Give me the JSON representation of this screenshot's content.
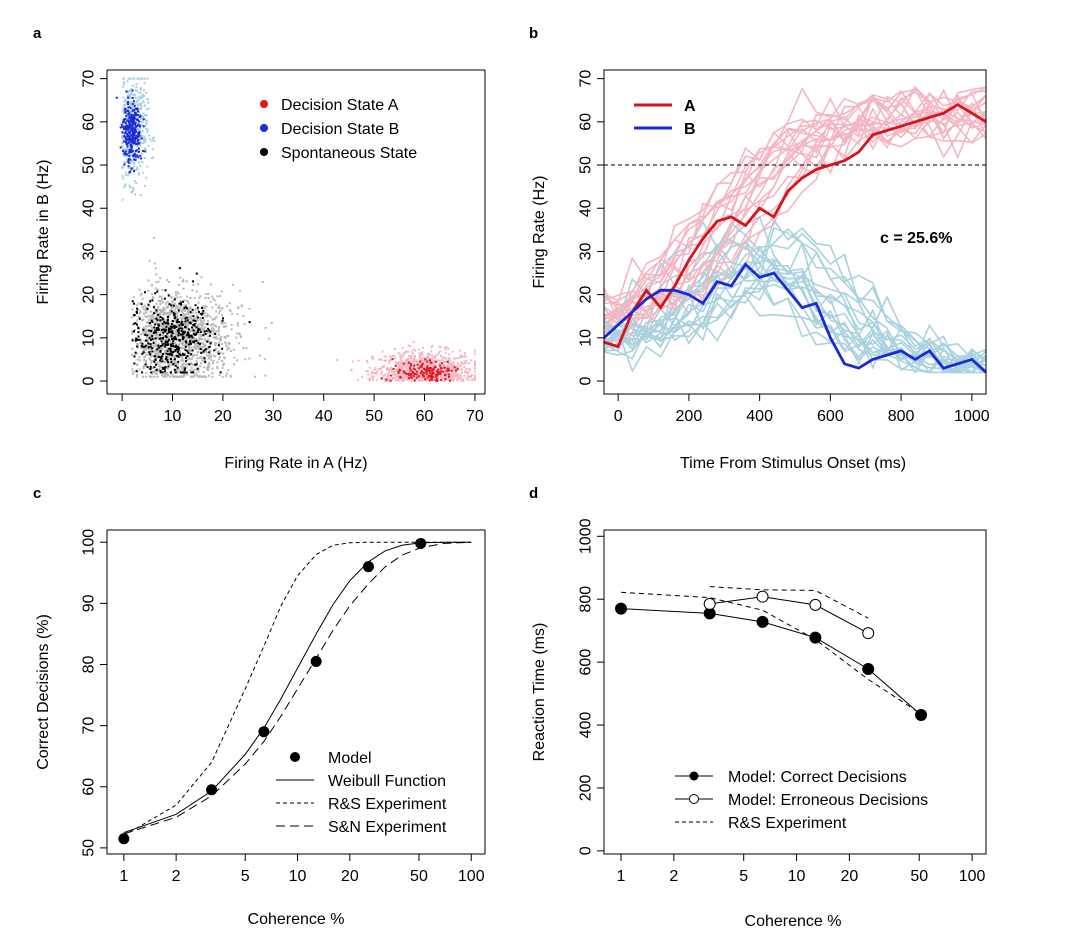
{
  "chart_data": [
    {
      "panel": "a",
      "type": "scatter",
      "xlabel": "Firing Rate in A (Hz)",
      "ylabel": "Firing Rate in B (Hz)",
      "xlim": [
        -3,
        72
      ],
      "ylim": [
        -3,
        72
      ],
      "xticks": [
        0,
        10,
        20,
        30,
        40,
        50,
        60,
        70
      ],
      "yticks": [
        0,
        10,
        20,
        30,
        40,
        50,
        60,
        70
      ],
      "legend_position": "top-right",
      "series": [
        {
          "name": "Decision State A",
          "color": "#e8141c",
          "cloud_color": "#f4b6c2",
          "center": [
            60,
            2
          ],
          "spread": [
            5,
            2.5
          ]
        },
        {
          "name": "Decision State B",
          "color": "#1a2bd6",
          "cloud_color": "#a9cfe0",
          "center": [
            2,
            58
          ],
          "spread": [
            1.5,
            6
          ]
        },
        {
          "name": "Spontaneous State",
          "color": "#000000",
          "cloud_color": "#b8b8b8",
          "center": [
            10,
            10
          ],
          "spread": [
            6,
            6
          ]
        }
      ]
    },
    {
      "panel": "b",
      "type": "line",
      "xlabel": "Time From Stimulus Onset (ms)",
      "ylabel": "Firing Rate (Hz)",
      "xlim": [
        -40,
        1040
      ],
      "ylim": [
        -3,
        72
      ],
      "xticks": [
        0,
        200,
        400,
        600,
        800,
        1000
      ],
      "yticks": [
        0,
        10,
        20,
        30,
        40,
        50,
        60,
        70
      ],
      "threshold": 50,
      "annotation": "c = 25.6%",
      "legend_position": "top-left",
      "series": [
        {
          "name": "A",
          "color": "#d7141c",
          "trials_color": "#f4b6c2",
          "x": [
            -40,
            0,
            40,
            80,
            120,
            160,
            200,
            240,
            280,
            320,
            360,
            400,
            440,
            480,
            520,
            560,
            600,
            640,
            680,
            720,
            760,
            800,
            840,
            880,
            920,
            960,
            1000,
            1040
          ],
          "y": [
            9,
            8,
            16,
            21,
            17,
            22,
            28,
            33,
            37,
            38,
            36,
            40,
            38,
            44,
            47,
            49,
            50,
            51,
            53,
            57,
            58,
            59,
            60,
            61,
            62,
            64,
            62,
            60
          ]
        },
        {
          "name": "B",
          "color": "#1a2bd6",
          "trials_color": "#a9d2de",
          "x": [
            -40,
            0,
            40,
            80,
            120,
            160,
            200,
            240,
            280,
            320,
            360,
            400,
            440,
            480,
            520,
            560,
            600,
            640,
            680,
            720,
            760,
            800,
            840,
            880,
            920,
            960,
            1000,
            1040
          ],
          "y": [
            10,
            13,
            16,
            19,
            21,
            21,
            20,
            18,
            23,
            22,
            27,
            24,
            25,
            21,
            17,
            18,
            10,
            4,
            3,
            5,
            6,
            7,
            5,
            7,
            3,
            4,
            5,
            2
          ]
        }
      ]
    },
    {
      "panel": "c",
      "type": "line",
      "xlabel": "Coherence %",
      "ylabel": "Correct Decisions (%)",
      "xscale": "log",
      "xlim": [
        0.8,
        120
      ],
      "ylim": [
        49,
        102
      ],
      "xticks": [
        1,
        2,
        5,
        10,
        20,
        50,
        100
      ],
      "yticks": [
        50,
        60,
        70,
        80,
        90,
        100
      ],
      "legend_position": "bottom-right",
      "series": [
        {
          "name": "Model",
          "style": "points",
          "x": [
            1,
            3.2,
            6.4,
            12.8,
            25.6,
            51.2
          ],
          "y": [
            51.5,
            59.5,
            69,
            80.5,
            96,
            99.8
          ]
        },
        {
          "name": "Weibull Function",
          "style": "solid",
          "x": [
            1,
            2,
            3.2,
            5,
            6.4,
            8,
            10,
            12.8,
            16,
            20,
            25.6,
            32,
            40,
            51.2,
            70,
            100
          ],
          "y": [
            52.5,
            55.5,
            59.3,
            65.3,
            69.6,
            74.3,
            79.4,
            85,
            89.8,
            93.7,
            96.8,
            98.6,
            99.5,
            99.9,
            100,
            100
          ]
        },
        {
          "name": "R&S Experiment",
          "style": "short-dash",
          "x": [
            1,
            2,
            3.2,
            5,
            6.4,
            8,
            10,
            12.8,
            16,
            20,
            25.6,
            32,
            51.2,
            100
          ],
          "y": [
            52,
            57,
            64,
            76,
            83,
            89.5,
            94.5,
            98,
            99.5,
            99.9,
            100,
            100,
            100,
            100
          ]
        },
        {
          "name": "S&N Experiment",
          "style": "long-dash",
          "x": [
            1,
            2,
            3.2,
            5,
            6.4,
            8,
            10,
            12.8,
            16,
            20,
            25.6,
            32,
            40,
            51.2,
            70,
            100
          ],
          "y": [
            52.3,
            55,
            58.5,
            63.7,
            67.4,
            71.5,
            76,
            81,
            85.6,
            89.6,
            93.2,
            96,
            97.9,
            99.1,
            99.8,
            100
          ]
        }
      ]
    },
    {
      "panel": "d",
      "type": "line",
      "xlabel": "Coherence %",
      "ylabel": "Reaction Time (ms)",
      "xscale": "log",
      "xlim": [
        0.8,
        120
      ],
      "ylim": [
        -10,
        1020
      ],
      "xticks": [
        1,
        2,
        5,
        10,
        20,
        50,
        100
      ],
      "yticks": [
        0,
        200,
        400,
        600,
        800,
        1000
      ],
      "legend_position": "bottom-center",
      "series": [
        {
          "name": "Model: Correct Decisions",
          "style": "filled",
          "x": [
            1,
            3.2,
            6.4,
            12.8,
            25.6,
            51.2
          ],
          "y": [
            770,
            755,
            728,
            678,
            578,
            432
          ]
        },
        {
          "name": "Model: Erroneous Decisions",
          "style": "open",
          "x": [
            3.2,
            6.4,
            12.8,
            25.6
          ],
          "y": [
            785,
            808,
            782,
            692
          ]
        },
        {
          "name": "R&S Experiment",
          "style": "dashed",
          "x": [
            1,
            3.2,
            6.4,
            12.8,
            25.6,
            51.2
          ],
          "y": [
            822,
            805,
            765,
            672,
            545,
            435
          ]
        },
        {
          "name": "",
          "style": "dashed",
          "x": [
            3.2,
            6.4,
            12.8,
            25.6
          ],
          "y": [
            840,
            830,
            828,
            740
          ]
        }
      ]
    }
  ]
}
